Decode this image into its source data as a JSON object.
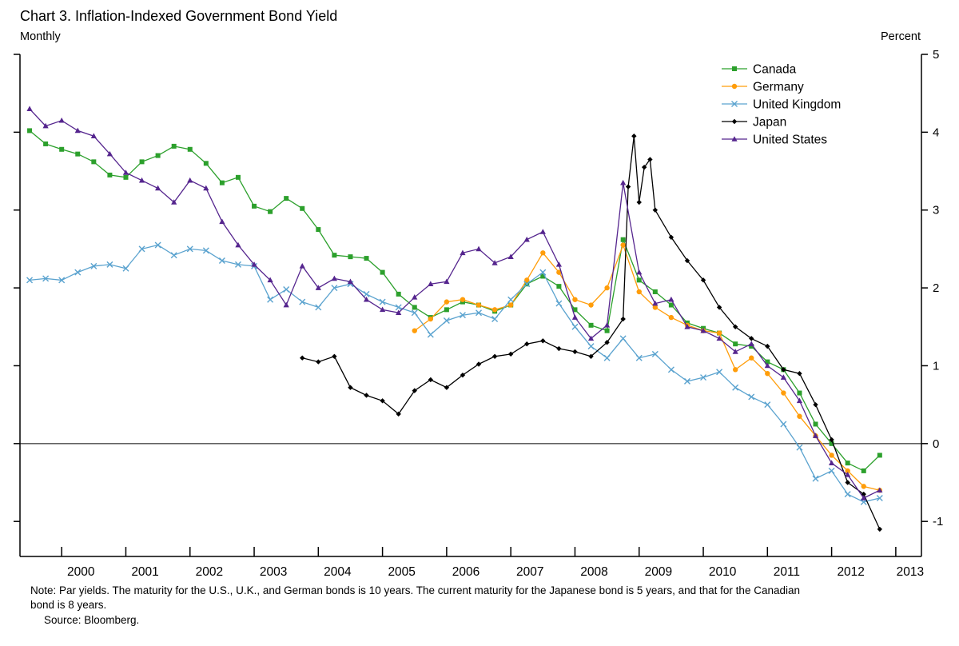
{
  "page": {
    "title": "Chart 3. Inflation-Indexed Government Bond Yield",
    "frequency_label": "Monthly",
    "y_axis_unit": "Percent",
    "note_lines": [
      "Note:  Par yields.  The maturity for the U.S., U.K., and German bonds is 10 years.  The current maturity for the Japanese bond is 5 years, and that for the Canadian",
      "bond is 8 years."
    ],
    "source": "Source:  Bloomberg."
  },
  "chart_data": {
    "type": "line",
    "title": "Chart 3. Inflation-Indexed Government Bond Yield",
    "frequency": "Monthly",
    "y_unit": "Percent",
    "x_range": [
      1999.35,
      2013.4
    ],
    "y_range": [
      -1.45,
      5
    ],
    "y_ticks": [
      5,
      4,
      3,
      2,
      1,
      0,
      -1
    ],
    "x_years": [
      2000,
      2001,
      2002,
      2003,
      2004,
      2005,
      2006,
      2007,
      2008,
      2009,
      2010,
      2011,
      2012,
      2013
    ],
    "zero_line": true,
    "grid": false,
    "legend_position": "top-right",
    "series": [
      {
        "id": "canada",
        "name": "Canada",
        "color": "#2ca02c",
        "marker": "square",
        "x": [
          1999.5,
          1999.75,
          2000,
          2000.25,
          2000.5,
          2000.75,
          2001,
          2001.25,
          2001.5,
          2001.75,
          2002,
          2002.25,
          2002.5,
          2002.75,
          2003,
          2003.25,
          2003.5,
          2003.75,
          2004,
          2004.25,
          2004.5,
          2004.75,
          2005,
          2005.25,
          2005.5,
          2005.75,
          2006,
          2006.25,
          2006.5,
          2006.75,
          2007,
          2007.25,
          2007.5,
          2007.75,
          2008,
          2008.25,
          2008.5,
          2008.75,
          2009,
          2009.25,
          2009.5,
          2009.75,
          2010,
          2010.25,
          2010.5,
          2010.75,
          2011,
          2011.25,
          2011.5,
          2011.75,
          2012,
          2012.25,
          2012.5,
          2012.75
        ],
        "y": [
          4.02,
          3.85,
          3.78,
          3.72,
          3.62,
          3.45,
          3.42,
          3.62,
          3.7,
          3.82,
          3.78,
          3.6,
          3.35,
          3.42,
          3.05,
          2.98,
          3.15,
          3.02,
          2.75,
          2.42,
          2.4,
          2.38,
          2.2,
          1.92,
          1.75,
          1.62,
          1.72,
          1.82,
          1.78,
          1.7,
          1.78,
          2.05,
          2.15,
          2.02,
          1.72,
          1.52,
          1.45,
          2.62,
          2.1,
          1.95,
          1.78,
          1.55,
          1.48,
          1.42,
          1.28,
          1.25,
          1.05,
          0.95,
          0.65,
          0.25,
          0.0,
          -0.25,
          -0.35,
          -0.15
        ]
      },
      {
        "id": "germany",
        "name": "Germany",
        "color": "#ff9d0a",
        "marker": "circle",
        "x": [
          2005.5,
          2005.75,
          2006,
          2006.25,
          2006.5,
          2006.75,
          2007,
          2007.25,
          2007.5,
          2007.75,
          2008,
          2008.25,
          2008.5,
          2008.75,
          2009,
          2009.25,
          2009.5,
          2009.75,
          2010,
          2010.25,
          2010.5,
          2010.75,
          2011,
          2011.25,
          2011.5,
          2011.75,
          2012,
          2012.25,
          2012.5,
          2012.75
        ],
        "y": [
          1.45,
          1.6,
          1.82,
          1.85,
          1.78,
          1.72,
          1.78,
          2.1,
          2.45,
          2.2,
          1.85,
          1.78,
          2.0,
          2.55,
          1.95,
          1.75,
          1.62,
          1.52,
          1.45,
          1.42,
          0.95,
          1.1,
          0.9,
          0.65,
          0.35,
          0.1,
          -0.15,
          -0.35,
          -0.55,
          -0.6
        ]
      },
      {
        "id": "uk",
        "name": "United Kingdom",
        "color": "#5ba3cf",
        "marker": "x",
        "x": [
          1999.5,
          1999.75,
          2000,
          2000.25,
          2000.5,
          2000.75,
          2001,
          2001.25,
          2001.5,
          2001.75,
          2002,
          2002.25,
          2002.5,
          2002.75,
          2003,
          2003.25,
          2003.5,
          2003.75,
          2004,
          2004.25,
          2004.5,
          2004.75,
          2005,
          2005.25,
          2005.5,
          2005.75,
          2006,
          2006.25,
          2006.5,
          2006.75,
          2007,
          2007.25,
          2007.5,
          2007.75,
          2008,
          2008.25,
          2008.5,
          2008.75,
          2009,
          2009.25,
          2009.5,
          2009.75,
          2010,
          2010.25,
          2010.5,
          2010.75,
          2011,
          2011.25,
          2011.5,
          2011.75,
          2012,
          2012.25,
          2012.5,
          2012.75
        ],
        "y": [
          2.1,
          2.12,
          2.1,
          2.2,
          2.28,
          2.3,
          2.25,
          2.5,
          2.55,
          2.42,
          2.5,
          2.48,
          2.35,
          2.3,
          2.28,
          1.85,
          1.98,
          1.82,
          1.75,
          2.0,
          2.05,
          1.92,
          1.82,
          1.75,
          1.68,
          1.4,
          1.58,
          1.65,
          1.68,
          1.6,
          1.85,
          2.05,
          2.2,
          1.8,
          1.5,
          1.25,
          1.1,
          1.35,
          1.1,
          1.15,
          0.95,
          0.8,
          0.85,
          0.92,
          0.72,
          0.6,
          0.5,
          0.25,
          -0.05,
          -0.45,
          -0.35,
          -0.65,
          -0.75,
          -0.7
        ]
      },
      {
        "id": "japan",
        "name": "Japan",
        "color": "#000000",
        "marker": "diamond",
        "x": [
          2003.75,
          2004,
          2004.25,
          2004.5,
          2004.75,
          2005,
          2005.25,
          2005.5,
          2005.75,
          2006,
          2006.25,
          2006.5,
          2006.75,
          2007,
          2007.25,
          2007.5,
          2007.75,
          2008,
          2008.25,
          2008.5,
          2008.75,
          2008.83,
          2008.92,
          2009,
          2009.08,
          2009.17,
          2009.25,
          2009.5,
          2009.75,
          2010,
          2010.25,
          2010.5,
          2010.75,
          2011,
          2011.25,
          2011.5,
          2011.75,
          2012,
          2012.25,
          2012.5,
          2012.75
        ],
        "y": [
          1.1,
          1.05,
          1.12,
          0.72,
          0.62,
          0.55,
          0.38,
          0.68,
          0.82,
          0.72,
          0.88,
          1.02,
          1.12,
          1.15,
          1.28,
          1.32,
          1.22,
          1.18,
          1.12,
          1.3,
          1.6,
          3.3,
          3.95,
          3.1,
          3.55,
          3.65,
          3.0,
          2.65,
          2.35,
          2.1,
          1.75,
          1.5,
          1.35,
          1.25,
          0.95,
          0.9,
          0.5,
          0.05,
          -0.5,
          -0.65,
          -1.1
        ]
      },
      {
        "id": "us",
        "name": "United States",
        "color": "#55258e",
        "marker": "triangle",
        "x": [
          1999.5,
          1999.75,
          2000,
          2000.25,
          2000.5,
          2000.75,
          2001,
          2001.25,
          2001.5,
          2001.75,
          2002,
          2002.25,
          2002.5,
          2002.75,
          2003,
          2003.25,
          2003.5,
          2003.75,
          2004,
          2004.25,
          2004.5,
          2004.75,
          2005,
          2005.25,
          2005.5,
          2005.75,
          2006,
          2006.25,
          2006.5,
          2006.75,
          2007,
          2007.25,
          2007.5,
          2007.75,
          2008,
          2008.25,
          2008.5,
          2008.75,
          2009,
          2009.25,
          2009.5,
          2009.75,
          2010,
          2010.25,
          2010.5,
          2010.75,
          2011,
          2011.25,
          2011.5,
          2011.75,
          2012,
          2012.25,
          2012.5,
          2012.75
        ],
        "y": [
          4.3,
          4.08,
          4.15,
          4.02,
          3.95,
          3.72,
          3.48,
          3.38,
          3.28,
          3.1,
          3.38,
          3.28,
          2.85,
          2.55,
          2.3,
          2.1,
          1.78,
          2.28,
          2.0,
          2.12,
          2.08,
          1.85,
          1.72,
          1.68,
          1.88,
          2.05,
          2.08,
          2.45,
          2.5,
          2.32,
          2.4,
          2.62,
          2.72,
          2.3,
          1.62,
          1.35,
          1.52,
          3.35,
          2.2,
          1.8,
          1.85,
          1.5,
          1.45,
          1.35,
          1.18,
          1.28,
          1.0,
          0.85,
          0.55,
          0.1,
          -0.25,
          -0.4,
          -0.7,
          -0.6
        ]
      }
    ]
  }
}
